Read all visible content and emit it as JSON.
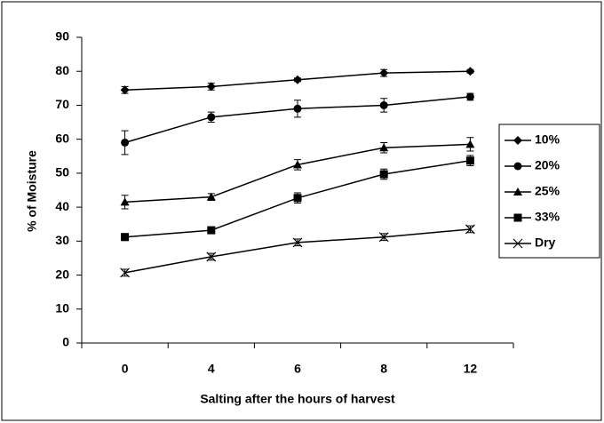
{
  "chart_data": {
    "type": "line",
    "x_label": "Salting after the hours of harvest",
    "y_label": "% of Moisture",
    "categories": [
      "0",
      "4",
      "6",
      "8",
      "12"
    ],
    "ylim": [
      0,
      90
    ],
    "yticks": [
      0,
      10,
      20,
      30,
      40,
      50,
      60,
      70,
      80,
      90
    ],
    "grid": false,
    "legend": "right",
    "series": [
      {
        "name": "10%",
        "color": "#000000",
        "marker": "diamond",
        "values": [
          74.5,
          75.5,
          77.5,
          79.5,
          80
        ],
        "errors": [
          1,
          1,
          0.5,
          1,
          0.5
        ]
      },
      {
        "name": "20%",
        "color": "#000000",
        "marker": "circle",
        "values": [
          59,
          66.5,
          69,
          70,
          72.5
        ],
        "errors": [
          3.5,
          1.5,
          2.5,
          2,
          1
        ]
      },
      {
        "name": "25%",
        "color": "#000000",
        "marker": "triangle",
        "values": [
          41.5,
          43,
          52.5,
          57.5,
          58.5
        ],
        "errors": [
          2,
          1,
          1.5,
          1.5,
          2
        ]
      },
      {
        "name": "33%",
        "color": "#000000",
        "marker": "square",
        "values": [
          31.2,
          33.2,
          42.7,
          49.7,
          53.7
        ],
        "errors": [
          1,
          1,
          1.5,
          1.5,
          1.5
        ]
      },
      {
        "name": "Dry",
        "color": "#000000",
        "marker": "x",
        "values": [
          20.7,
          25.4,
          29.6,
          31.2,
          33.5
        ],
        "errors": [
          1,
          1,
          1,
          1,
          1
        ]
      }
    ]
  }
}
